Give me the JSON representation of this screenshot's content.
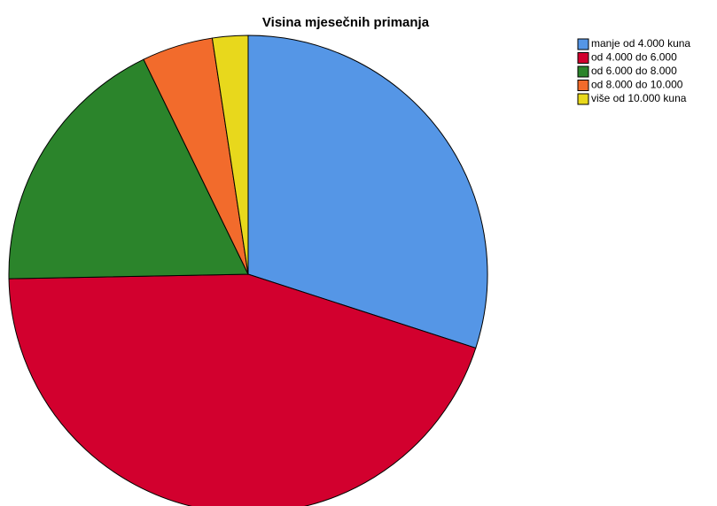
{
  "chart_data": {
    "type": "pie",
    "title": "Visina mjesečnih primanja",
    "categories": [
      "manje od 4.000 kuna",
      "od 4.000 do 6.000",
      "od 6.000 do 8.000",
      "od 8.000 do 10.000",
      "više od 10.000 kuna"
    ],
    "values": [
      30,
      44.7,
      18.1,
      4.8,
      2.4
    ],
    "colors": [
      "#5596e6",
      "#d2002e",
      "#2b842b",
      "#f26b2c",
      "#e8d81c"
    ],
    "legend": "top-right"
  }
}
